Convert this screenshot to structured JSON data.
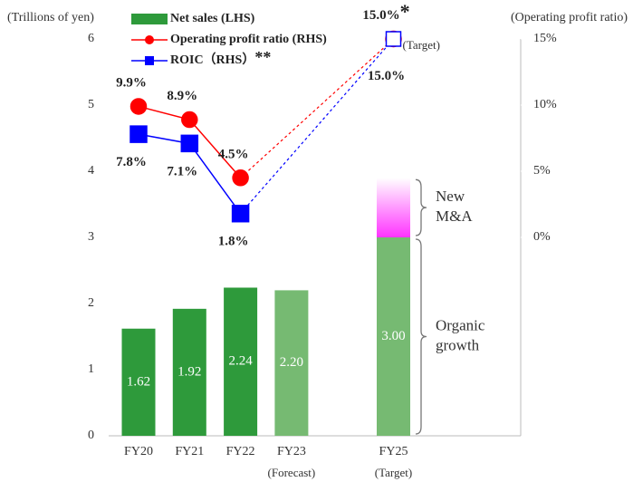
{
  "chart_data": {
    "type": "bar_line",
    "y_axis_label": "(Trillions of yen)",
    "y2_axis_label": "(Operating profit ratio)",
    "categories": [
      "FY20",
      "FY21",
      "FY22",
      "FY23",
      null,
      "FY25"
    ],
    "category_notes": [
      null,
      null,
      null,
      "(Forecast)",
      null,
      "(Target)"
    ],
    "ylim": [
      0,
      6
    ],
    "yticks": [
      0,
      1,
      2,
      3,
      4,
      5,
      6
    ],
    "y2lim": [
      -15,
      15
    ],
    "y2ticks": [
      {
        "value": 0,
        "label": "0%"
      },
      {
        "value": 5,
        "label": "5%"
      },
      {
        "value": 10,
        "label": "10%"
      },
      {
        "value": 15,
        "label": "15%"
      }
    ],
    "gap_line": "dashed",
    "series": [
      {
        "name": "Net sales (LHS)",
        "type": "bar",
        "color": "#2e9a3b",
        "colors": [
          "#2e9a3b",
          "#2e9a3b",
          "#2e9a3b",
          "#76ba72",
          null,
          "#76ba72"
        ],
        "values": [
          1.62,
          1.92,
          2.24,
          2.2,
          null,
          3.0
        ],
        "value_labels": [
          "1.62",
          "1.92",
          "2.24",
          "2.20",
          null,
          "3.00"
        ]
      },
      {
        "name": "Operating profit ratio (RHS)",
        "type": "line",
        "marker": "circle",
        "axis": "y2",
        "color": "#ff0000",
        "values": [
          9.9,
          8.9,
          4.5,
          null,
          null,
          15.0
        ],
        "value_labels": [
          "9.9%",
          "8.9%",
          "4.5%",
          null,
          null,
          "15.0%"
        ],
        "label_position": "above",
        "label_marks": [
          null,
          null,
          null,
          null,
          null,
          "*"
        ]
      },
      {
        "name": "ROIC（RHS）",
        "name_mark": "**",
        "type": "line",
        "marker": "square",
        "axis": "y2",
        "color": "#0000ff",
        "values": [
          7.8,
          7.1,
          1.8,
          null,
          null,
          15.0
        ],
        "value_labels": [
          "7.8%",
          "7.1%",
          "1.8%",
          null,
          null,
          "15.0%"
        ],
        "label_position": "below",
        "hollow": [
          false,
          false,
          false,
          null,
          null,
          true
        ],
        "point_notes": [
          null,
          null,
          null,
          null,
          null,
          "(Target)"
        ]
      }
    ],
    "segments": [
      {
        "label": "New M&A",
        "base_series": 0,
        "color": "#ff33ff",
        "values": [
          null,
          null,
          null,
          null,
          null,
          0.9
        ]
      }
    ],
    "brace_labels": [
      {
        "text": "New M&A",
        "index": 5,
        "from": "segment"
      },
      {
        "text": "Organic growth",
        "index": 5,
        "from": "base"
      }
    ]
  }
}
